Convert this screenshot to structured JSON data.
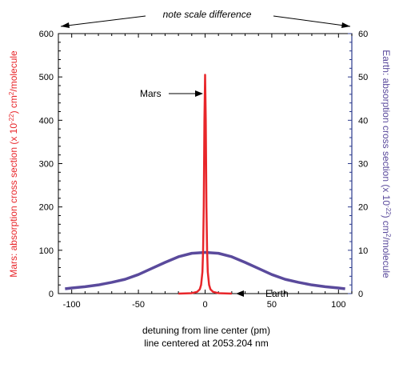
{
  "chart_data": {
    "type": "line",
    "note": "note scale difference",
    "xlabel": "detuning from line center (pm)",
    "xlabel_sub": "line centered at 2053.204 nm",
    "ylabel_left_parts": {
      "pre": "Mars: absorption cross section (x 10",
      "exp": "-22",
      "post": ") cm",
      "unit_exp": "2",
      "tail": "/molecule"
    },
    "ylabel_right_parts": {
      "pre": "Earth: absorption cross section (x 10",
      "exp": "-22",
      "post": ") cm",
      "unit_exp": "2",
      "tail": "/molecule"
    },
    "xlim": [
      -110,
      110
    ],
    "ylim_left": [
      0,
      600
    ],
    "ylim_right": [
      0,
      60
    ],
    "x_ticks": [
      -100,
      -50,
      0,
      50,
      100
    ],
    "y_ticks_left": [
      0,
      100,
      200,
      300,
      400,
      500,
      600
    ],
    "y_ticks_right": [
      0,
      10,
      20,
      30,
      40,
      50,
      60
    ],
    "colors": {
      "mars": "#e8262a",
      "earth": "#5a4a9c",
      "left_axis_label": "#e8262a",
      "right_axis_label": "#5a4a9c",
      "right_axis": "#2b3a8c"
    },
    "series": [
      {
        "name": "Mars",
        "axis": "left",
        "x": [
          -20,
          -10,
          -6,
          -4,
          -3,
          -2,
          -1.5,
          -1,
          -0.5,
          0,
          0.5,
          1,
          1.5,
          2,
          3,
          4,
          6,
          10,
          20
        ],
        "y": [
          0,
          1,
          4,
          10,
          20,
          50,
          100,
          200,
          400,
          505,
          400,
          200,
          100,
          50,
          20,
          10,
          4,
          1,
          0
        ]
      },
      {
        "name": "Earth",
        "axis": "right",
        "x": [
          -105,
          -100,
          -90,
          -80,
          -70,
          -60,
          -50,
          -40,
          -30,
          -20,
          -10,
          0,
          10,
          20,
          30,
          40,
          50,
          60,
          70,
          80,
          90,
          100,
          105
        ],
        "y": [
          1.1,
          1.3,
          1.6,
          2.0,
          2.6,
          3.3,
          4.4,
          5.8,
          7.2,
          8.5,
          9.3,
          9.5,
          9.3,
          8.5,
          7.2,
          5.8,
          4.4,
          3.3,
          2.6,
          2.0,
          1.6,
          1.3,
          1.1
        ]
      }
    ],
    "annotations": [
      {
        "text": "Mars",
        "points_to": "Mars"
      },
      {
        "text": "Earth",
        "points_to": "Earth"
      }
    ]
  }
}
